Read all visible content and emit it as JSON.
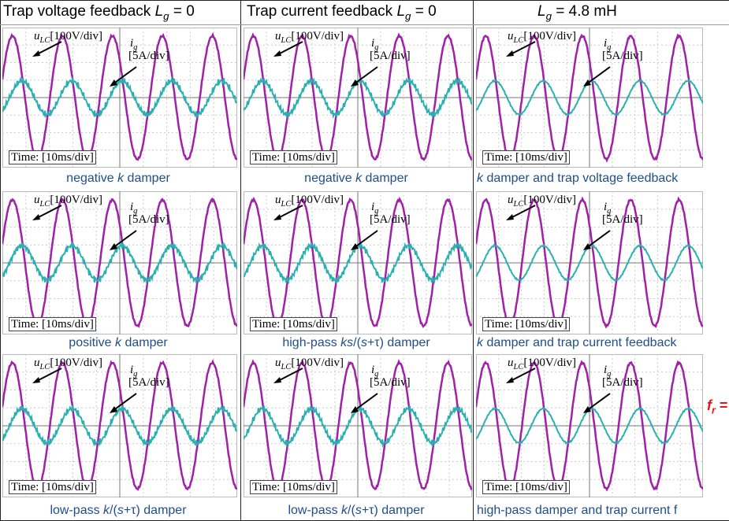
{
  "header": [
    [
      {
        "text": "Trap voltage feedback "
      },
      {
        "text": "L",
        "italic": true
      },
      {
        "text": "g",
        "italic": true,
        "sub": true
      },
      {
        "text": " = 0"
      }
    ],
    [
      {
        "text": "Trap current feedback "
      },
      {
        "text": "L",
        "italic": true
      },
      {
        "text": "g",
        "italic": true,
        "sub": true
      },
      {
        "text": " = 0"
      }
    ],
    [
      {
        "text": "L",
        "italic": true
      },
      {
        "text": "g",
        "italic": true,
        "sub": true
      },
      {
        "text": " = 4.8 mH"
      }
    ]
  ],
  "voltage_label": [
    {
      "text": "u",
      "italic": true
    },
    {
      "text": "LC",
      "italic": true,
      "sub": true
    },
    {
      "text": "[100V/div]"
    }
  ],
  "current_label": [
    {
      "text": "i",
      "italic": true
    },
    {
      "text": "g",
      "italic": true,
      "sub": true
    }
  ],
  "current_scale": "[5A/div]",
  "time_label": "Time: [10ms/div]",
  "captions": [
    [
      [
        {
          "text": "negative "
        },
        {
          "text": "k",
          "italic": true
        },
        {
          "text": " damper"
        }
      ],
      [
        {
          "text": "positive "
        },
        {
          "text": "k",
          "italic": true
        },
        {
          "text": " damper"
        }
      ],
      [
        {
          "text": "low-pass "
        },
        {
          "text": "k",
          "italic": true
        },
        {
          "text": "/("
        },
        {
          "text": "s",
          "italic": true
        },
        {
          "text": "+τ) damper"
        }
      ]
    ],
    [
      [
        {
          "text": "negative "
        },
        {
          "text": "k",
          "italic": true
        },
        {
          "text": " damper"
        }
      ],
      [
        {
          "text": "high-pass "
        },
        {
          "text": "ks",
          "italic": true
        },
        {
          "text": "/("
        },
        {
          "text": "s",
          "italic": true
        },
        {
          "text": "+τ) damper"
        }
      ],
      [
        {
          "text": "low-pass "
        },
        {
          "text": "k",
          "italic": true
        },
        {
          "text": "/("
        },
        {
          "text": "s",
          "italic": true
        },
        {
          "text": "+τ) damper"
        }
      ]
    ],
    [
      [
        {
          "text": "k",
          "italic": true
        },
        {
          "text": " damper and trap voltage feedback"
        }
      ],
      [
        {
          "text": "k",
          "italic": true
        },
        {
          "text": " damper and trap current feedback"
        }
      ],
      [
        {
          "text": "high-pass damper and trap current f"
        }
      ]
    ]
  ],
  "annotation": [
    {
      "text": "f",
      "italic": true
    },
    {
      "text": "r",
      "italic": true,
      "sub": true
    },
    {
      "text": " ="
    }
  ]
}
